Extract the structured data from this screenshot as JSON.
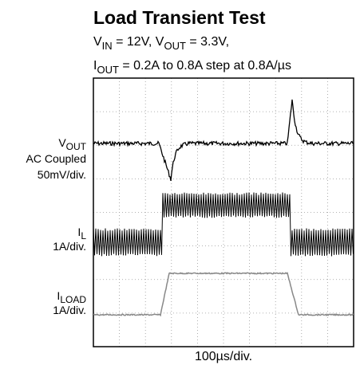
{
  "title": "Load Transient Test",
  "subtitle_line1": [
    "V",
    "IN",
    " = 12V, V",
    "OUT",
    " = 3.3V,"
  ],
  "subtitle_line2": [
    "I",
    "OUT",
    " = 0.2A to 0.8A step at 0.8A/µs"
  ],
  "traces": {
    "vout": {
      "name": [
        "V",
        "OUT"
      ],
      "lines": [
        "AC Coupled",
        "50mV/div."
      ]
    },
    "il": {
      "name": [
        "I",
        "L"
      ],
      "lines": [
        "1A/div."
      ]
    },
    "iload": {
      "name": [
        "I",
        "LOAD"
      ],
      "lines": [
        "1A/div."
      ]
    }
  },
  "x_label": "100µs/div."
}
